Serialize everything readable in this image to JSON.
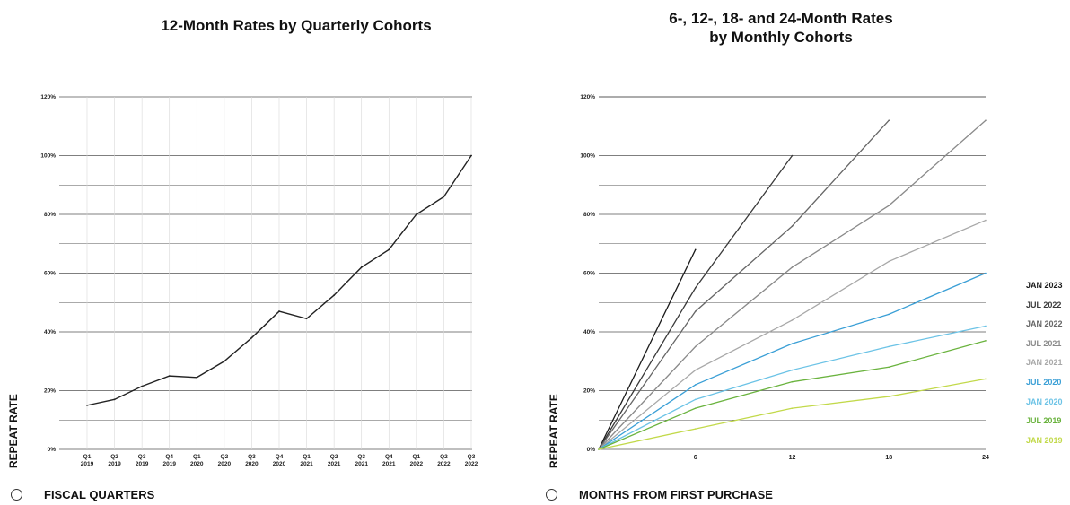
{
  "chart_data": [
    {
      "type": "line",
      "title": "12-Month Rates by Quarterly Cohorts",
      "ylabel": "REPEAT RATE",
      "xlabel": "FISCAL QUARTERS",
      "ylim": [
        0,
        120
      ],
      "yticks": [
        "0%",
        "20%",
        "40%",
        "60%",
        "80%",
        "100%",
        "120%"
      ],
      "categories": [
        {
          "q": "Q1",
          "y": "2019"
        },
        {
          "q": "Q2",
          "y": "2019"
        },
        {
          "q": "Q3",
          "y": "2019"
        },
        {
          "q": "Q4",
          "y": "2019"
        },
        {
          "q": "Q1",
          "y": "2020"
        },
        {
          "q": "Q2",
          "y": "2020"
        },
        {
          "q": "Q3",
          "y": "2020"
        },
        {
          "q": "Q4",
          "y": "2020"
        },
        {
          "q": "Q1",
          "y": "2021"
        },
        {
          "q": "Q2",
          "y": "2021"
        },
        {
          "q": "Q3",
          "y": "2021"
        },
        {
          "q": "Q4",
          "y": "2021"
        },
        {
          "q": "Q1",
          "y": "2022"
        },
        {
          "q": "Q2",
          "y": "2022"
        },
        {
          "q": "Q3",
          "y": "2022"
        }
      ],
      "series": [
        {
          "values": [
            15,
            17,
            21.5,
            25,
            24.5,
            30,
            38,
            47,
            44.5,
            52.5,
            62,
            68,
            80,
            86,
            100
          ],
          "color": "#222222"
        }
      ],
      "grid": true
    },
    {
      "type": "line",
      "title_line1": "6-, 12-, 18- and 24-Month Rates",
      "title_line2": "by Monthly Cohorts",
      "ylabel": "REPEAT RATE",
      "xlabel": "MONTHS FROM FIRST PURCHASE",
      "ylim": [
        0,
        120
      ],
      "yticks": [
        "0%",
        "20%",
        "40%",
        "60%",
        "80%",
        "100%",
        "120%"
      ],
      "x": [
        0,
        6,
        12,
        18,
        24
      ],
      "xticks": [
        "6",
        "12",
        "18",
        "24"
      ],
      "legend_position": "right",
      "series": [
        {
          "name": "JAN 2023",
          "color": "#1a1a1a",
          "points": [
            [
              0,
              0
            ],
            [
              6,
              68
            ]
          ]
        },
        {
          "name": "JUL 2022",
          "color": "#3a3a3a",
          "points": [
            [
              0,
              0
            ],
            [
              6,
              55
            ],
            [
              12,
              100
            ]
          ]
        },
        {
          "name": "JAN 2022",
          "color": "#666666",
          "points": [
            [
              0,
              0
            ],
            [
              6,
              47
            ],
            [
              12,
              76
            ],
            [
              18,
              112
            ]
          ]
        },
        {
          "name": "JUL 2021",
          "color": "#8a8a8a",
          "points": [
            [
              0,
              0
            ],
            [
              6,
              35
            ],
            [
              12,
              62
            ],
            [
              18,
              83
            ],
            [
              24,
              112
            ]
          ]
        },
        {
          "name": "JAN 2021",
          "color": "#a8a8a8",
          "points": [
            [
              0,
              0
            ],
            [
              6,
              27
            ],
            [
              12,
              44
            ],
            [
              18,
              64
            ],
            [
              24,
              78
            ]
          ]
        },
        {
          "name": "JUL 2020",
          "color": "#3a9fd6",
          "points": [
            [
              0,
              0
            ],
            [
              6,
              22
            ],
            [
              12,
              36
            ],
            [
              18,
              46
            ],
            [
              24,
              60
            ]
          ]
        },
        {
          "name": "JAN 2020",
          "color": "#6cc3e6",
          "points": [
            [
              0,
              0
            ],
            [
              6,
              17
            ],
            [
              12,
              27
            ],
            [
              18,
              35
            ],
            [
              24,
              42
            ]
          ]
        },
        {
          "name": "JUL 2019",
          "color": "#6ab33e",
          "points": [
            [
              0,
              0
            ],
            [
              6,
              14
            ],
            [
              12,
              23
            ],
            [
              18,
              28
            ],
            [
              24,
              37
            ]
          ]
        },
        {
          "name": "JAN 2019",
          "color": "#c2d94a",
          "points": [
            [
              0,
              0
            ],
            [
              6,
              7
            ],
            [
              12,
              14
            ],
            [
              18,
              18
            ],
            [
              24,
              24
            ]
          ]
        }
      ],
      "grid": true
    }
  ]
}
